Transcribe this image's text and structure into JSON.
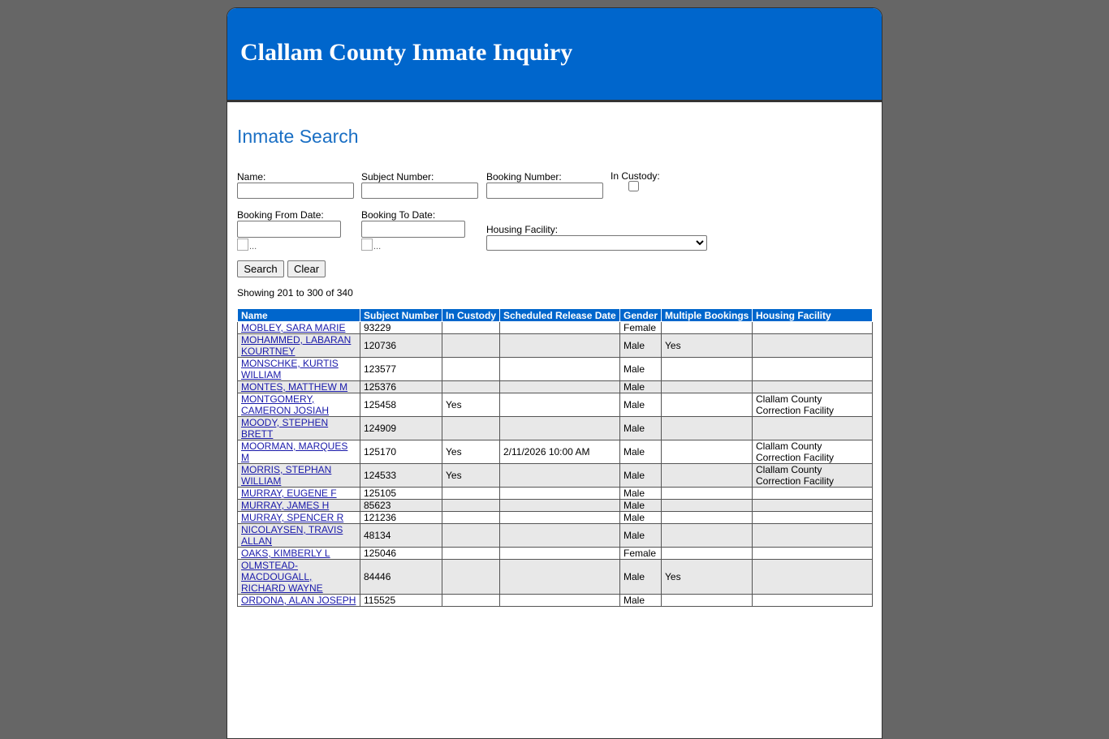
{
  "header": {
    "title": "Clallam County Inmate Inquiry"
  },
  "search": {
    "heading": "Inmate Search",
    "fields": {
      "name": "Name:",
      "subject_number": "Subject Number:",
      "booking_number": "Booking Number:",
      "in_custody": "In Custody:",
      "booking_from_date": "Booking From Date:",
      "booking_to_date": "Booking To Date:",
      "housing_facility": "Housing Facility:"
    },
    "calendar_icon_alt": "...",
    "buttons": [
      "Search",
      "Clear"
    ]
  },
  "results": {
    "summary": "Showing 201 to 300 of 340",
    "columns": [
      "Name",
      "Subject Number",
      "In Custody",
      "Scheduled Release Date",
      "Gender",
      "Multiple Bookings",
      "Housing Facility"
    ],
    "rows": [
      [
        "MOBLEY, SARA MARIE",
        93229,
        null,
        null,
        "Female",
        null,
        null
      ],
      [
        "MOHAMMED, LABARAN KOURTNEY",
        120736,
        null,
        null,
        "Male",
        "Yes",
        null
      ],
      [
        "MONSCHKE, KURTIS WILLIAM",
        123577,
        null,
        null,
        "Male",
        null,
        null
      ],
      [
        "MONTES, MATTHEW M",
        125376,
        null,
        null,
        "Male",
        null,
        null
      ],
      [
        "MONTGOMERY, CAMERON JOSIAH",
        125458,
        "Yes",
        null,
        "Male",
        null,
        "Clallam County Correction Facility"
      ],
      [
        "MOODY, STEPHEN BRETT",
        124909,
        null,
        null,
        "Male",
        null,
        null
      ],
      [
        "MOORMAN, MARQUES M",
        125170,
        "Yes",
        "2/11/2026 10:00 AM",
        "Male",
        null,
        "Clallam County Correction Facility"
      ],
      [
        "MORRIS, STEPHAN WILLIAM",
        124533,
        "Yes",
        null,
        "Male",
        null,
        "Clallam County Correction Facility"
      ],
      [
        "MURRAY, EUGENE F",
        125105,
        null,
        null,
        "Male",
        null,
        null
      ],
      [
        "MURRAY, JAMES H",
        85623,
        null,
        null,
        "Male",
        null,
        null
      ],
      [
        "MURRAY, SPENCER R",
        121236,
        null,
        null,
        "Male",
        null,
        null
      ],
      [
        "NICOLAYSEN, TRAVIS ALLAN",
        48134,
        null,
        null,
        "Male",
        null,
        null
      ],
      [
        "OAKS, KIMBERLY L",
        125046,
        null,
        null,
        "Female",
        null,
        null
      ],
      [
        "OLMSTEAD-MACDOUGALL, RICHARD WAYNE",
        84446,
        null,
        null,
        "Male",
        "Yes",
        null
      ],
      [
        "ORDONA, ALAN JOSEPH",
        115525,
        null,
        null,
        "Male",
        null,
        null
      ]
    ]
  }
}
